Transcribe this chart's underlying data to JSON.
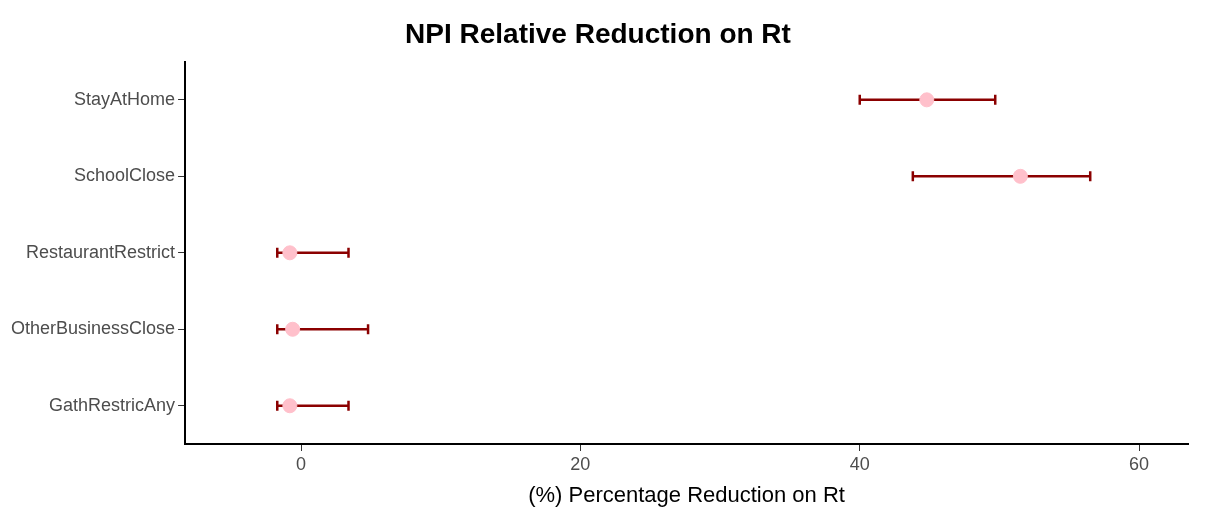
{
  "chart_data": {
    "type": "scatter",
    "orientation": "horizontal",
    "title": "NPI Relative Reduction on Rt",
    "xlabel": "(%) Percentage Reduction on Rt",
    "categories": [
      "StayAtHome",
      "SchoolClose",
      "RestaurantRestrict",
      "OtherBusinessClose",
      "GathRestricAny"
    ],
    "series": [
      {
        "color": "#ffc0cb",
        "values": [
          44.8,
          51.5,
          -0.8,
          -0.6,
          -0.8
        ],
        "errors": [
          [
            40.0,
            49.7
          ],
          [
            43.8,
            56.5
          ],
          [
            -1.7,
            3.4
          ],
          [
            -1.7,
            4.8
          ],
          [
            -1.7,
            3.4
          ]
        ]
      }
    ],
    "xlim": [
      -8.3,
      63.5
    ],
    "xticks": [
      0,
      20,
      40,
      60
    ],
    "grid": false,
    "legend": false,
    "marker": "circle"
  }
}
